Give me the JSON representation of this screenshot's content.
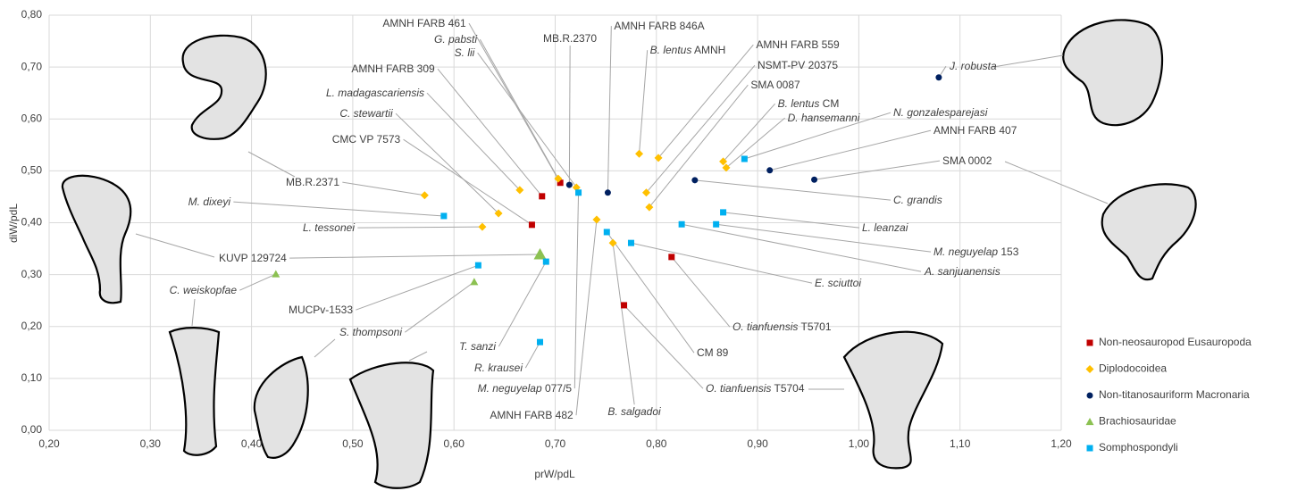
{
  "chart_data": {
    "type": "scatter",
    "x_label": "prW/pdL",
    "y_label": "diW/pdL",
    "xlim": [
      0.2,
      1.2
    ],
    "ylim": [
      0,
      0.8
    ],
    "grid": true,
    "legend": "lower right",
    "xticks": [
      {
        "value": 0.2,
        "label": "0,20"
      },
      {
        "value": 0.3,
        "label": "0,30"
      },
      {
        "value": 0.4,
        "label": "0,40"
      },
      {
        "value": 0.5,
        "label": "0,50"
      },
      {
        "value": 0.6,
        "label": "0,60"
      },
      {
        "value": 0.7,
        "label": "0,70"
      },
      {
        "value": 0.8,
        "label": "0,80"
      },
      {
        "value": 0.9,
        "label": "0,90"
      },
      {
        "value": 1.0,
        "label": "1,00"
      },
      {
        "value": 1.1,
        "label": "1,10"
      },
      {
        "value": 1.2,
        "label": "1,20"
      }
    ],
    "yticks": [
      {
        "value": 0,
        "label": "0,00"
      },
      {
        "value": 0.1,
        "label": "0,10"
      },
      {
        "value": 0.2,
        "label": "0,20"
      },
      {
        "value": 0.3,
        "label": "0,30"
      },
      {
        "value": 0.4,
        "label": "0,40"
      },
      {
        "value": 0.5,
        "label": "0,50"
      },
      {
        "value": 0.6,
        "label": "0,60"
      },
      {
        "value": 0.7,
        "label": "0,70"
      },
      {
        "value": 0.8,
        "label": "0,80"
      }
    ],
    "series": [
      {
        "name": "Non-neosauropod Eusauropoda",
        "color": "#c00000",
        "marker": "square",
        "x": [
          0.705,
          0.687,
          0.677,
          0.815,
          0.768
        ],
        "values": [
          0.477,
          0.451,
          0.396,
          0.334,
          0.241
        ],
        "labels": [
          "AMNH FARB 461",
          "AMNH FARB 309",
          "CMC VP 7573",
          "O. tianfuensis T5701",
          "O. tianfuensis T5704"
        ]
      },
      {
        "name": "Diplodocoidea",
        "color": "#ffc000",
        "marker": "diamond",
        "x": [
          0.571,
          0.644,
          0.628,
          0.665,
          0.703,
          0.721,
          0.741,
          0.757,
          0.783,
          0.802,
          0.79,
          0.793,
          0.866,
          0.869
        ],
        "values": [
          0.453,
          0.418,
          0.392,
          0.463,
          0.485,
          0.468,
          0.406,
          0.361,
          0.533,
          0.525,
          0.458,
          0.43,
          0.518,
          0.506
        ],
        "labels": [
          "MB.R.2371",
          "C. stewartii",
          "L. tessonei",
          "L. madagascariensis",
          "G. pabsti",
          "S. lii",
          "AMNH FARB 482",
          "B. salgadoi",
          "B. lentus AMNH",
          "AMNH FARB 559",
          "NSMT-PV 20375",
          "SMA 0087",
          "B. lentus CM",
          "D. hansemanni"
        ]
      },
      {
        "name": "Non-titanosauriform Macronaria",
        "color": "#002060",
        "marker": "circle",
        "x": [
          0.714,
          0.752,
          0.838,
          0.912,
          0.956,
          1.079
        ],
        "values": [
          0.473,
          0.458,
          0.482,
          0.501,
          0.483,
          0.68
        ],
        "labels": [
          "MB.R.2370",
          "AMNH FARB 846A",
          "C. grandis",
          "AMNH FARB 407",
          "SMA 0002",
          "J. robusta"
        ]
      },
      {
        "name": "Brachiosauridae",
        "color": "#8cc152",
        "marker": "triangle",
        "x": [
          0.685,
          0.424,
          0.62
        ],
        "values": [
          0.339,
          0.301,
          0.286
        ],
        "labels": [
          "KUVP 129724",
          "C. weiskopfae",
          "S. thompsoni"
        ]
      },
      {
        "name": "Somphospondyli",
        "color": "#00b0f0",
        "marker": "square",
        "x": [
          0.59,
          0.624,
          0.691,
          0.685,
          0.723,
          0.751,
          0.775,
          0.825,
          0.859,
          0.866,
          0.887
        ],
        "values": [
          0.413,
          0.318,
          0.325,
          0.17,
          0.458,
          0.382,
          0.361,
          0.397,
          0.397,
          0.42,
          0.523
        ],
        "labels": [
          "M. dixeyi",
          "MUCPv-1533",
          "T. sanzi",
          "R. krausei",
          "M. neguyelap 077/5",
          "CM 89",
          "E. sciuttoi",
          "A. sanjuanensis",
          "M. neguyelap 153",
          "L. leanzai",
          "N. gonzalesparejasi"
        ]
      }
    ]
  }
}
